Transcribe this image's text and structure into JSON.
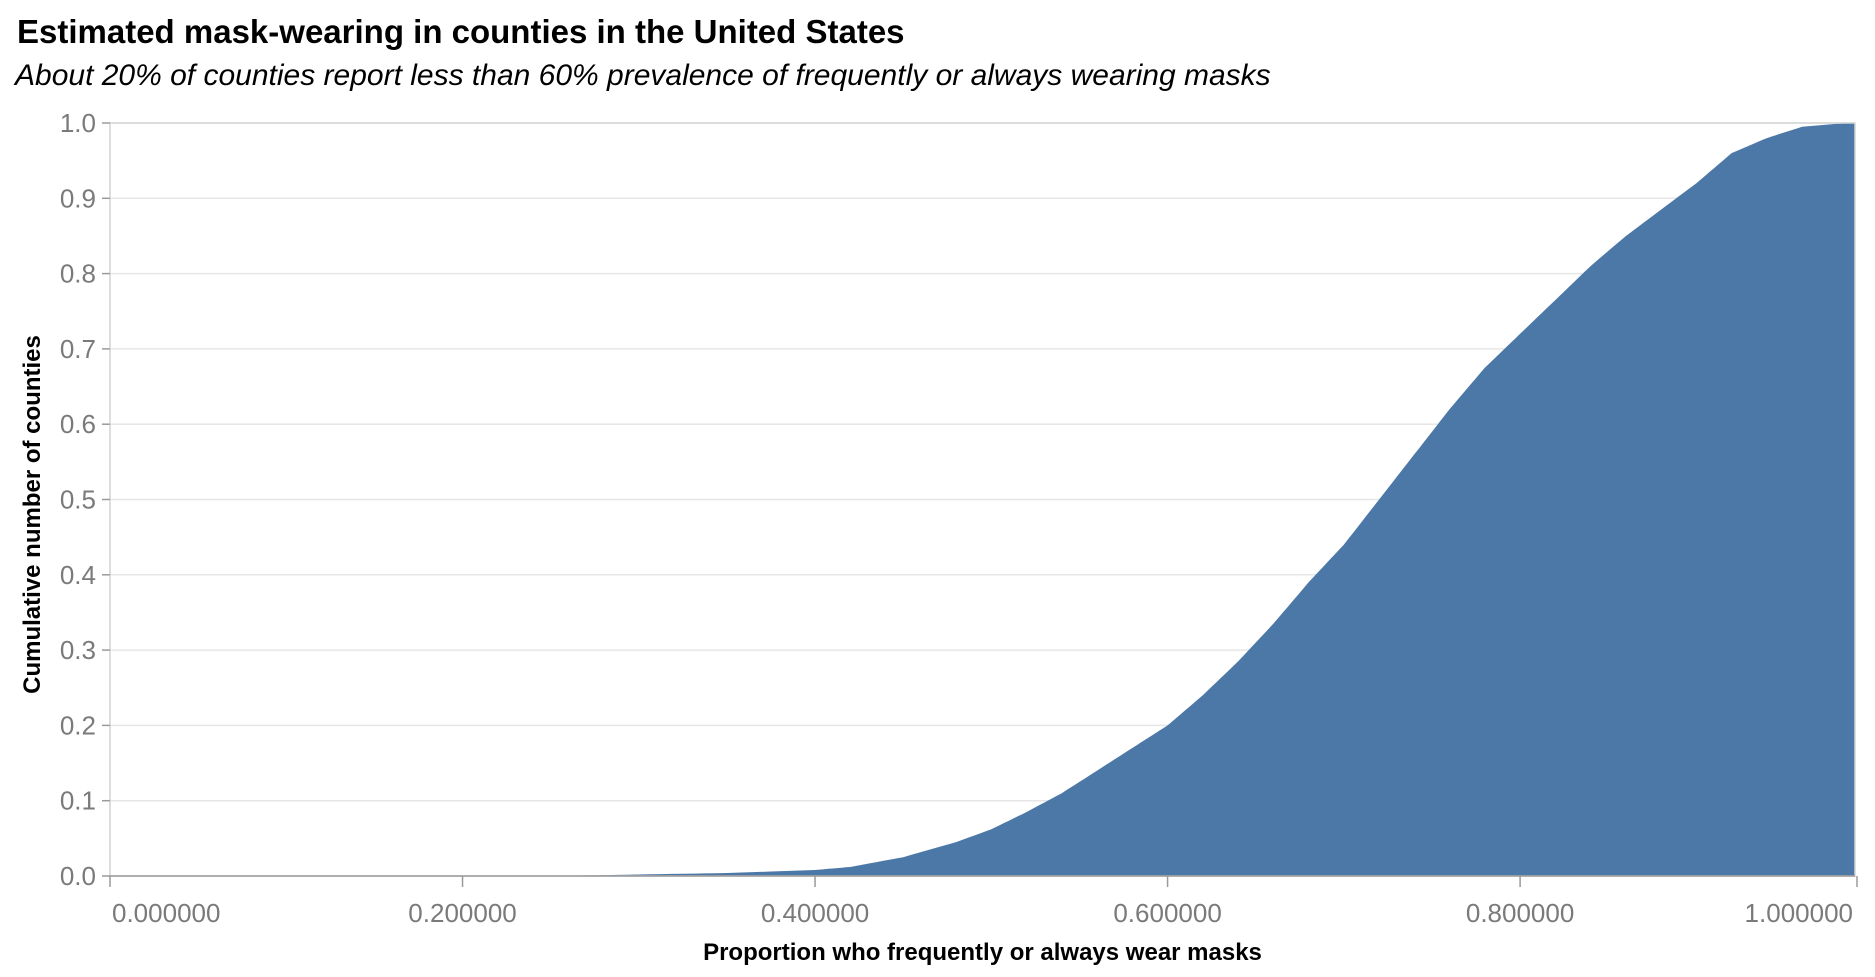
{
  "header": {
    "title": "Estimated mask-wearing in counties in the United States",
    "subtitle": "About 20% of counties report less than 60% prevalence of frequently or always wearing masks"
  },
  "chart_data": {
    "type": "area",
    "title": "Estimated mask-wearing in counties in the United States",
    "subtitle": "About 20% of counties report less than 60% prevalence of frequently or always wearing masks",
    "xlabel": "Proportion who frequently or always wear masks",
    "ylabel": "Cumulative number of counties",
    "xlim": [
      0.0,
      0.99
    ],
    "ylim": [
      0.0,
      1.0
    ],
    "x_ticks": [
      0.0,
      0.2,
      0.4,
      0.6,
      0.8,
      1.0
    ],
    "x_tick_labels": [
      "0.000000",
      "0.200000",
      "0.400000",
      "0.600000",
      "0.800000",
      "1.000000"
    ],
    "y_ticks": [
      0.0,
      0.1,
      0.2,
      0.3,
      0.4,
      0.5,
      0.6,
      0.7,
      0.8,
      0.9,
      1.0
    ],
    "y_tick_labels": [
      "0.0",
      "0.1",
      "0.2",
      "0.3",
      "0.4",
      "0.5",
      "0.6",
      "0.7",
      "0.8",
      "0.9",
      "1.0"
    ],
    "grid": true,
    "fill_color": "#4c78a8",
    "series": [
      {
        "x": [
          0.0,
          0.25,
          0.3,
          0.35,
          0.4,
          0.42,
          0.45,
          0.48,
          0.5,
          0.52,
          0.54,
          0.56,
          0.58,
          0.6,
          0.62,
          0.64,
          0.66,
          0.68,
          0.7,
          0.72,
          0.74,
          0.76,
          0.78,
          0.8,
          0.82,
          0.84,
          0.86,
          0.88,
          0.9,
          0.92,
          0.94,
          0.96,
          0.98,
          0.99
        ],
        "y": [
          0.0,
          0.0,
          0.002,
          0.004,
          0.008,
          0.012,
          0.025,
          0.045,
          0.062,
          0.085,
          0.11,
          0.14,
          0.17,
          0.2,
          0.24,
          0.285,
          0.335,
          0.39,
          0.44,
          0.5,
          0.56,
          0.62,
          0.675,
          0.72,
          0.765,
          0.81,
          0.85,
          0.885,
          0.92,
          0.96,
          0.98,
          0.995,
          0.999,
          1.0
        ]
      }
    ]
  }
}
